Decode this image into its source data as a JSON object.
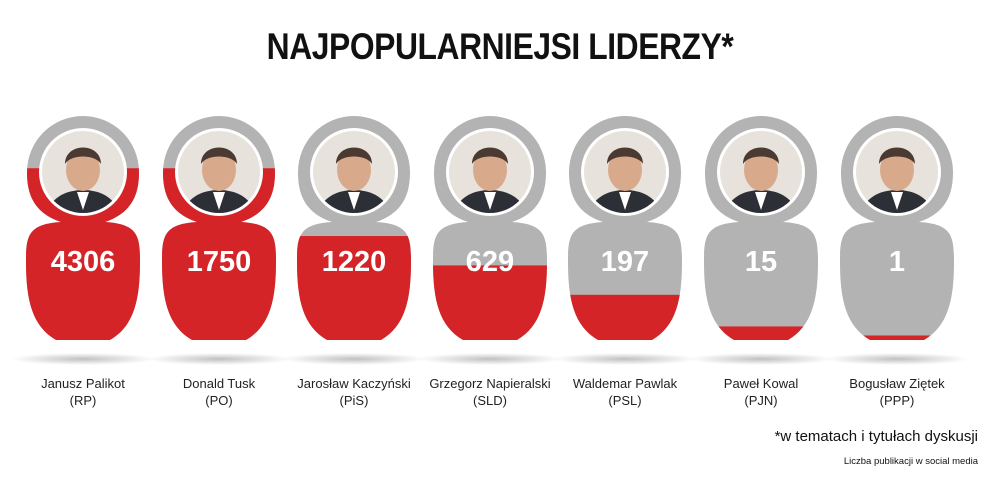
{
  "title": "NAJPOPULARNIEJSI LIDERZY*",
  "footnote": "*w tematach i tytułach dyskusji",
  "source": "Liczba publikacji w social media",
  "colors": {
    "fill": "#d42428",
    "body": "#b3b3b3",
    "shadow": "#bdbdbd",
    "value_text": "#ffffff"
  },
  "chart_data": {
    "type": "bar",
    "title": "NAJPOPULARNIEJSI LIDERZY*",
    "categories": [
      "Janusz Palikot (RP)",
      "Donald Tusk (PO)",
      "Jarosław Kaczyński (PiS)",
      "Grzegorz Napieralski (SLD)",
      "Waldemar Pawlak (PSL)",
      "Paweł Kowal (PJN)",
      "Bogusław Ziętek (PPP)"
    ],
    "values": [
      4306,
      1750,
      1220,
      629,
      197,
      15,
      1
    ],
    "fill_fraction": [
      0.76,
      0.76,
      0.46,
      0.33,
      0.2,
      0.06,
      0.02
    ],
    "leaders": [
      {
        "name": "Janusz Palikot",
        "party": "(RP)",
        "value": "4306"
      },
      {
        "name": "Donald Tusk",
        "party": "(PO)",
        "value": "1750"
      },
      {
        "name": "Jarosław Kaczyński",
        "party": "(PiS)",
        "value": "1220"
      },
      {
        "name": "Grzegorz Napieralski",
        "party": "(SLD)",
        "value": "629"
      },
      {
        "name": "Waldemar Pawlak",
        "party": "(PSL)",
        "value": "197"
      },
      {
        "name": "Paweł Kowal",
        "party": "(PJN)",
        "value": "15"
      },
      {
        "name": "Bogusław Ziętek",
        "party": "(PPP)",
        "value": "1"
      }
    ],
    "xlabel": "",
    "ylabel": ""
  }
}
